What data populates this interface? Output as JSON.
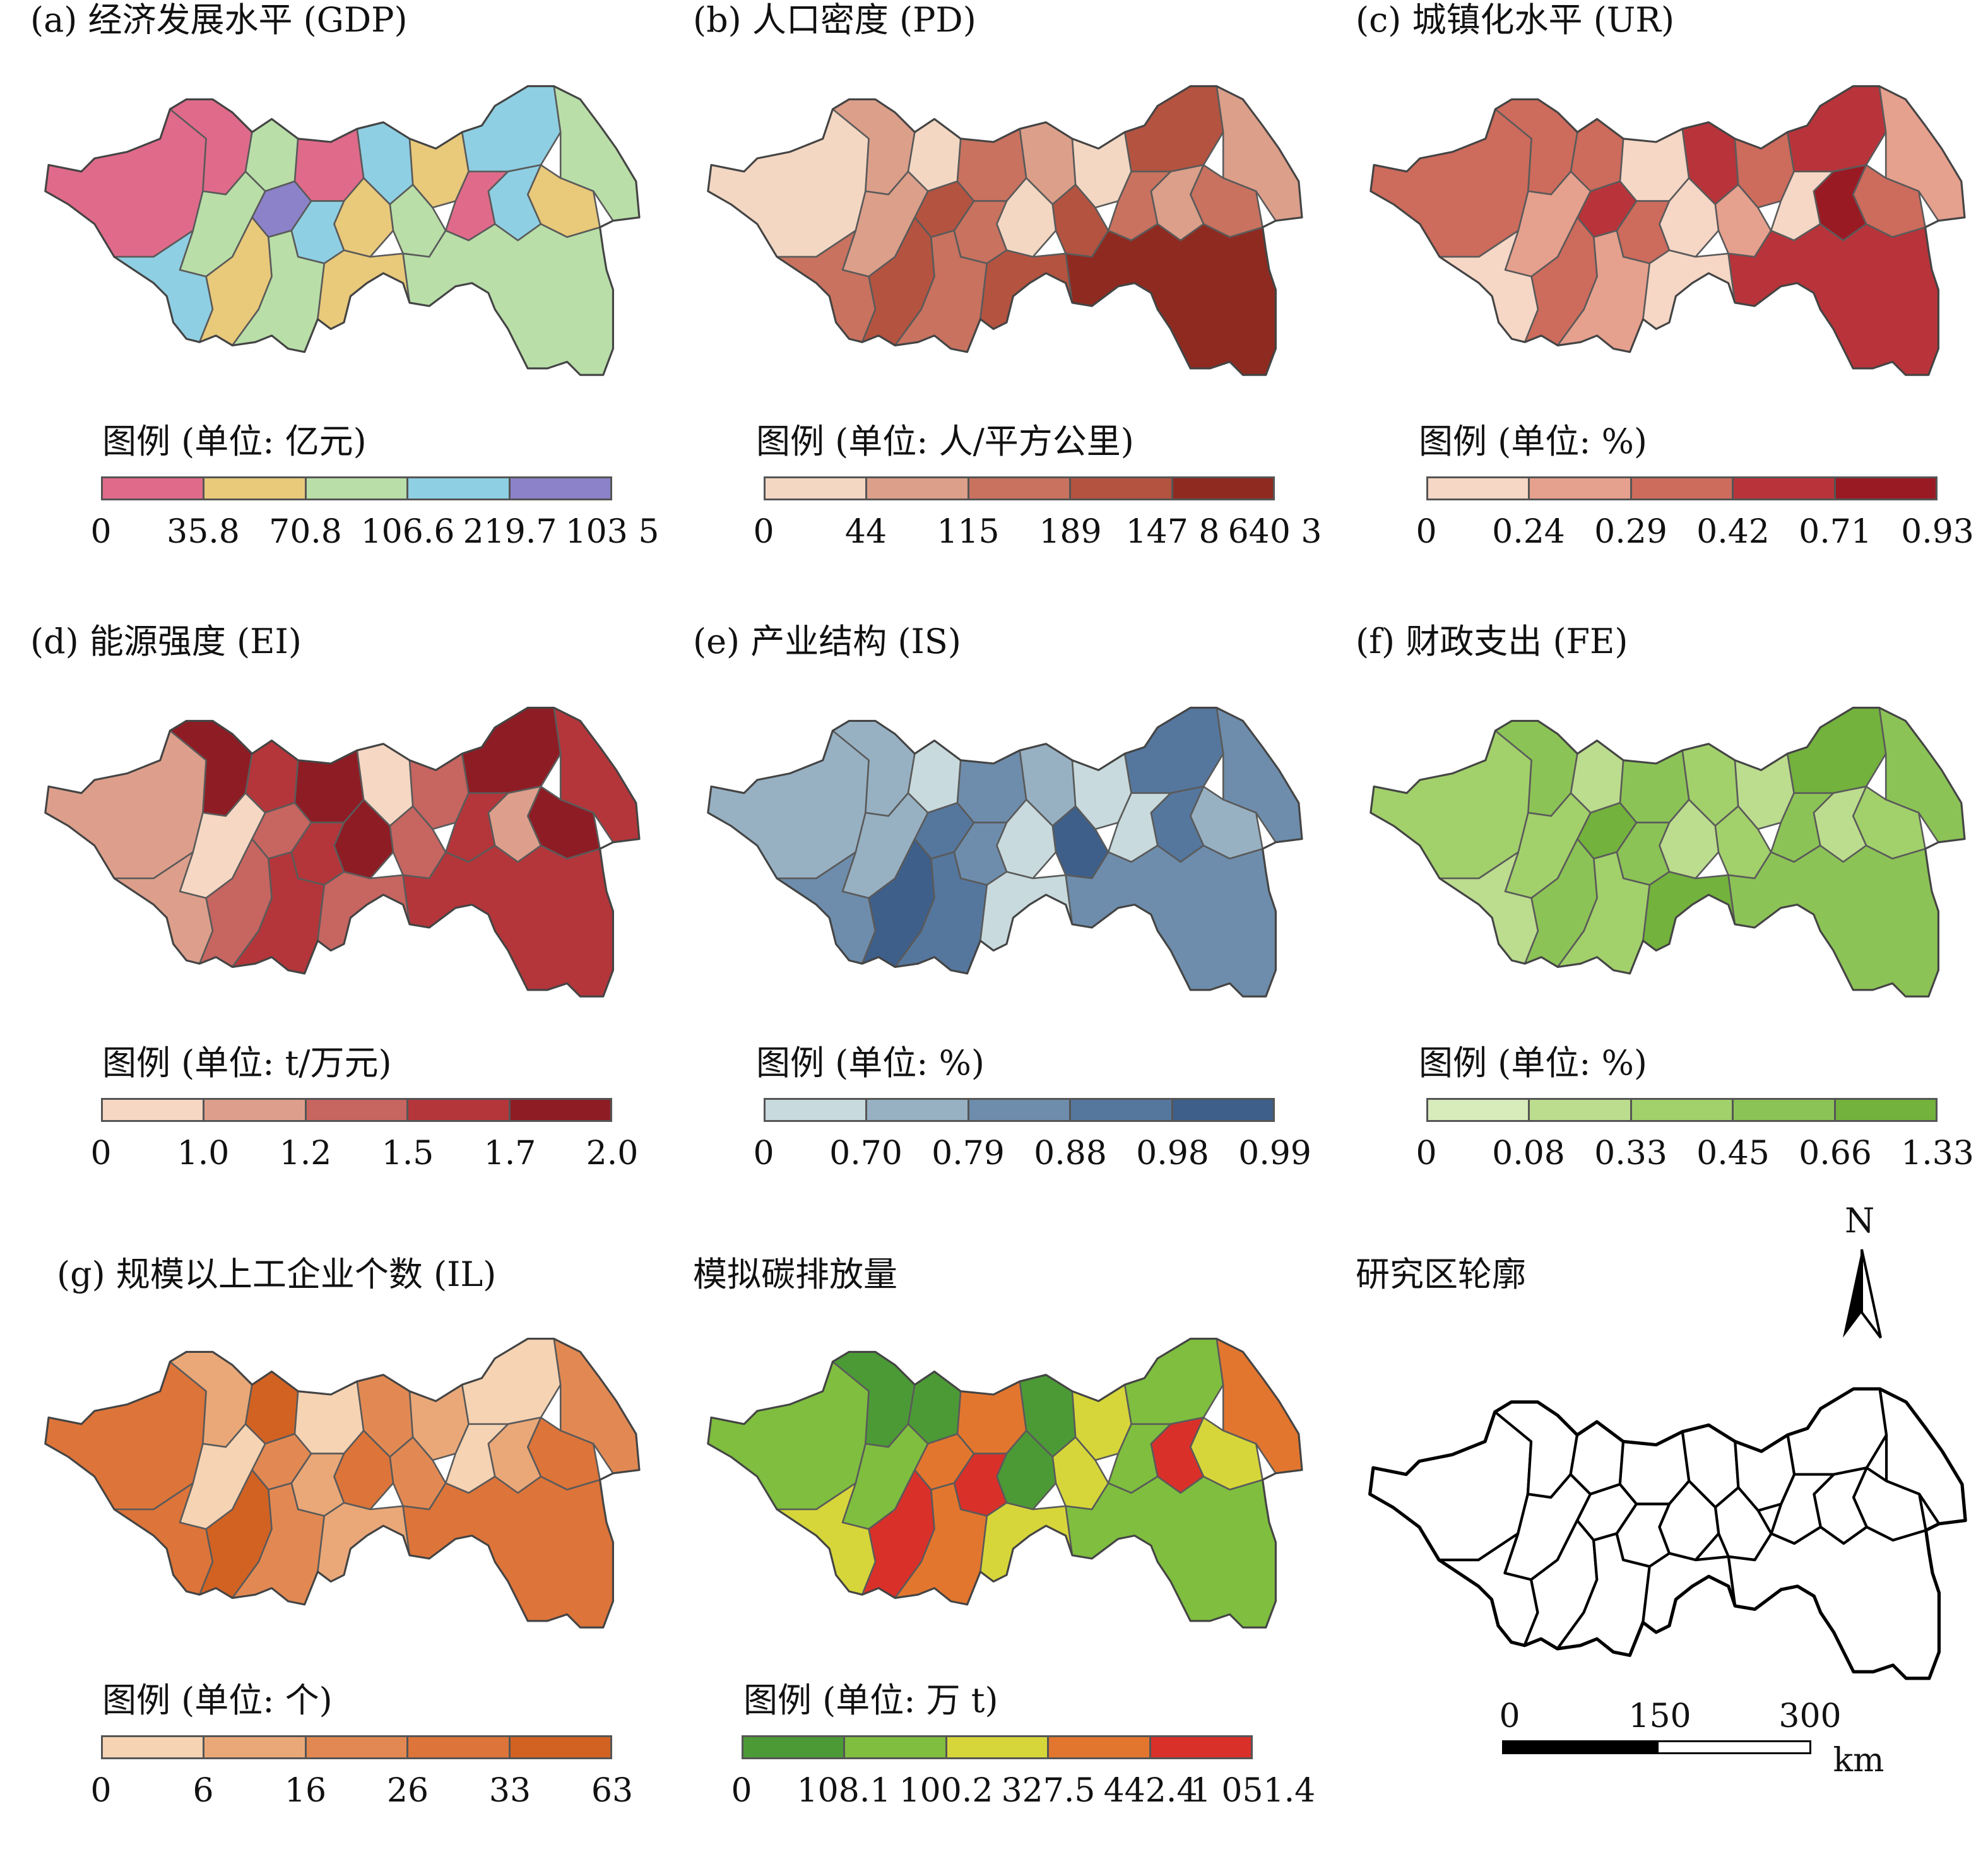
{
  "panels": [
    {
      "title": "(a) 经济发展水平 (GDP)",
      "legend_title": "图例 (单位: 亿元)",
      "ticks": [
        "0",
        "35.8",
        "70.8",
        "106.6",
        "219.7",
        "103 5"
      ],
      "colors": [
        "#e06a8a",
        "#e9c97a",
        "#b9dea8",
        "#8ecfe3",
        "#8b82c9"
      ],
      "fills": [
        0,
        0,
        2,
        0,
        3,
        1,
        3,
        2,
        1,
        3,
        0,
        2,
        1,
        3,
        4,
        2,
        3,
        1,
        2,
        1,
        2
      ]
    },
    {
      "title": "(b) 人口密度 (PD)",
      "legend_title": "图例 (单位: 人/平方公里)",
      "ticks": [
        "0",
        "44",
        "115",
        "189",
        "147 8",
        "640 3"
      ],
      "colors": [
        "#f3d7c3",
        "#dc9f8a",
        "#c8725f",
        "#b45340",
        "#8f2a20"
      ],
      "fills": [
        0,
        1,
        0,
        2,
        1,
        0,
        3,
        1,
        2,
        1,
        2,
        3,
        0,
        2,
        3,
        1,
        2,
        3,
        2,
        3,
        4
      ]
    },
    {
      "title": "(c) 城镇化水平 (UR)",
      "legend_title": "图例 (单位: %)",
      "ticks": [
        "0",
        "0.24",
        "0.29",
        "0.42",
        "0.71",
        "0.93"
      ],
      "colors": [
        "#f6d6c5",
        "#e6a08e",
        "#cd6b5c",
        "#b8343a",
        "#9a1a24"
      ],
      "fills": [
        2,
        2,
        2,
        0,
        3,
        2,
        3,
        1,
        2,
        4,
        0,
        1,
        0,
        2,
        3,
        1,
        0,
        2,
        1,
        0,
        3
      ]
    },
    {
      "title": "(d) 能源强度 (EI)",
      "legend_title": "图例 (单位: t/万元)",
      "ticks": [
        "0",
        "1.0",
        "1.2",
        "1.5",
        "1.7",
        "2.0"
      ],
      "colors": [
        "#f6d7c3",
        "#dd9f8b",
        "#c76560",
        "#b4363a",
        "#8e1c24"
      ],
      "fills": [
        1,
        4,
        3,
        4,
        0,
        2,
        4,
        3,
        4,
        1,
        3,
        2,
        4,
        3,
        2,
        0,
        1,
        2,
        3,
        2,
        3
      ]
    },
    {
      "title": "(e) 产业结构 (IS)",
      "legend_title": "图例 (单位: %)",
      "ticks": [
        "0",
        "0.70",
        "0.79",
        "0.88",
        "0.98",
        "0.99"
      ],
      "colors": [
        "#c8dadd",
        "#97b1c3",
        "#6e8dac",
        "#55779e",
        "#3e5f8a"
      ],
      "fills": [
        1,
        1,
        0,
        2,
        1,
        0,
        3,
        2,
        1,
        3,
        0,
        4,
        0,
        2,
        3,
        1,
        2,
        4,
        3,
        0,
        2
      ]
    },
    {
      "title": "(f) 财政支出 (FE)",
      "legend_title": "图例 (单位: %)",
      "ticks": [
        "0",
        "0.08",
        "0.33",
        "0.45",
        "0.66",
        "1.33"
      ],
      "colors": [
        "#d8ebbb",
        "#bcdc8e",
        "#a2d06b",
        "#8cc356",
        "#73b23c"
      ],
      "fills": [
        2,
        3,
        1,
        3,
        2,
        1,
        4,
        3,
        2,
        1,
        3,
        2,
        1,
        3,
        4,
        2,
        1,
        3,
        2,
        4,
        3
      ]
    },
    {
      "title": "(g) 规模以上工企业个数 (IL)",
      "legend_title": "图例 (单位: 个)",
      "ticks": [
        "0",
        "6",
        "16",
        "26",
        "33",
        "63"
      ],
      "colors": [
        "#f6d3b3",
        "#eaa878",
        "#e28953",
        "#dd7439",
        "#d26222"
      ],
      "fills": [
        3,
        1,
        4,
        0,
        2,
        1,
        0,
        2,
        3,
        1,
        0,
        2,
        3,
        1,
        2,
        0,
        3,
        4,
        2,
        1,
        3
      ]
    },
    {
      "title": "模拟碳排放量",
      "legend_title": "图例 (单位: 万 t)",
      "ticks": [
        "0",
        "108.1",
        "100.2",
        "327.5",
        "442.4",
        "1 051.4"
      ],
      "colors": [
        "#4c9a36",
        "#7fbe3e",
        "#d6d63a",
        "#e3762e",
        "#d9302a"
      ],
      "fills": [
        1,
        0,
        0,
        3,
        0,
        2,
        1,
        3,
        2,
        4,
        1,
        2,
        0,
        4,
        3,
        1,
        2,
        4,
        3,
        2,
        1
      ]
    },
    {
      "title": "研究区轮廓",
      "legend_title": "",
      "ticks": [],
      "colors": [],
      "fills": []
    }
  ],
  "north": {
    "label": "N"
  },
  "scale": {
    "ticks": [
      "0",
      "150",
      "300"
    ],
    "unit": "km"
  }
}
